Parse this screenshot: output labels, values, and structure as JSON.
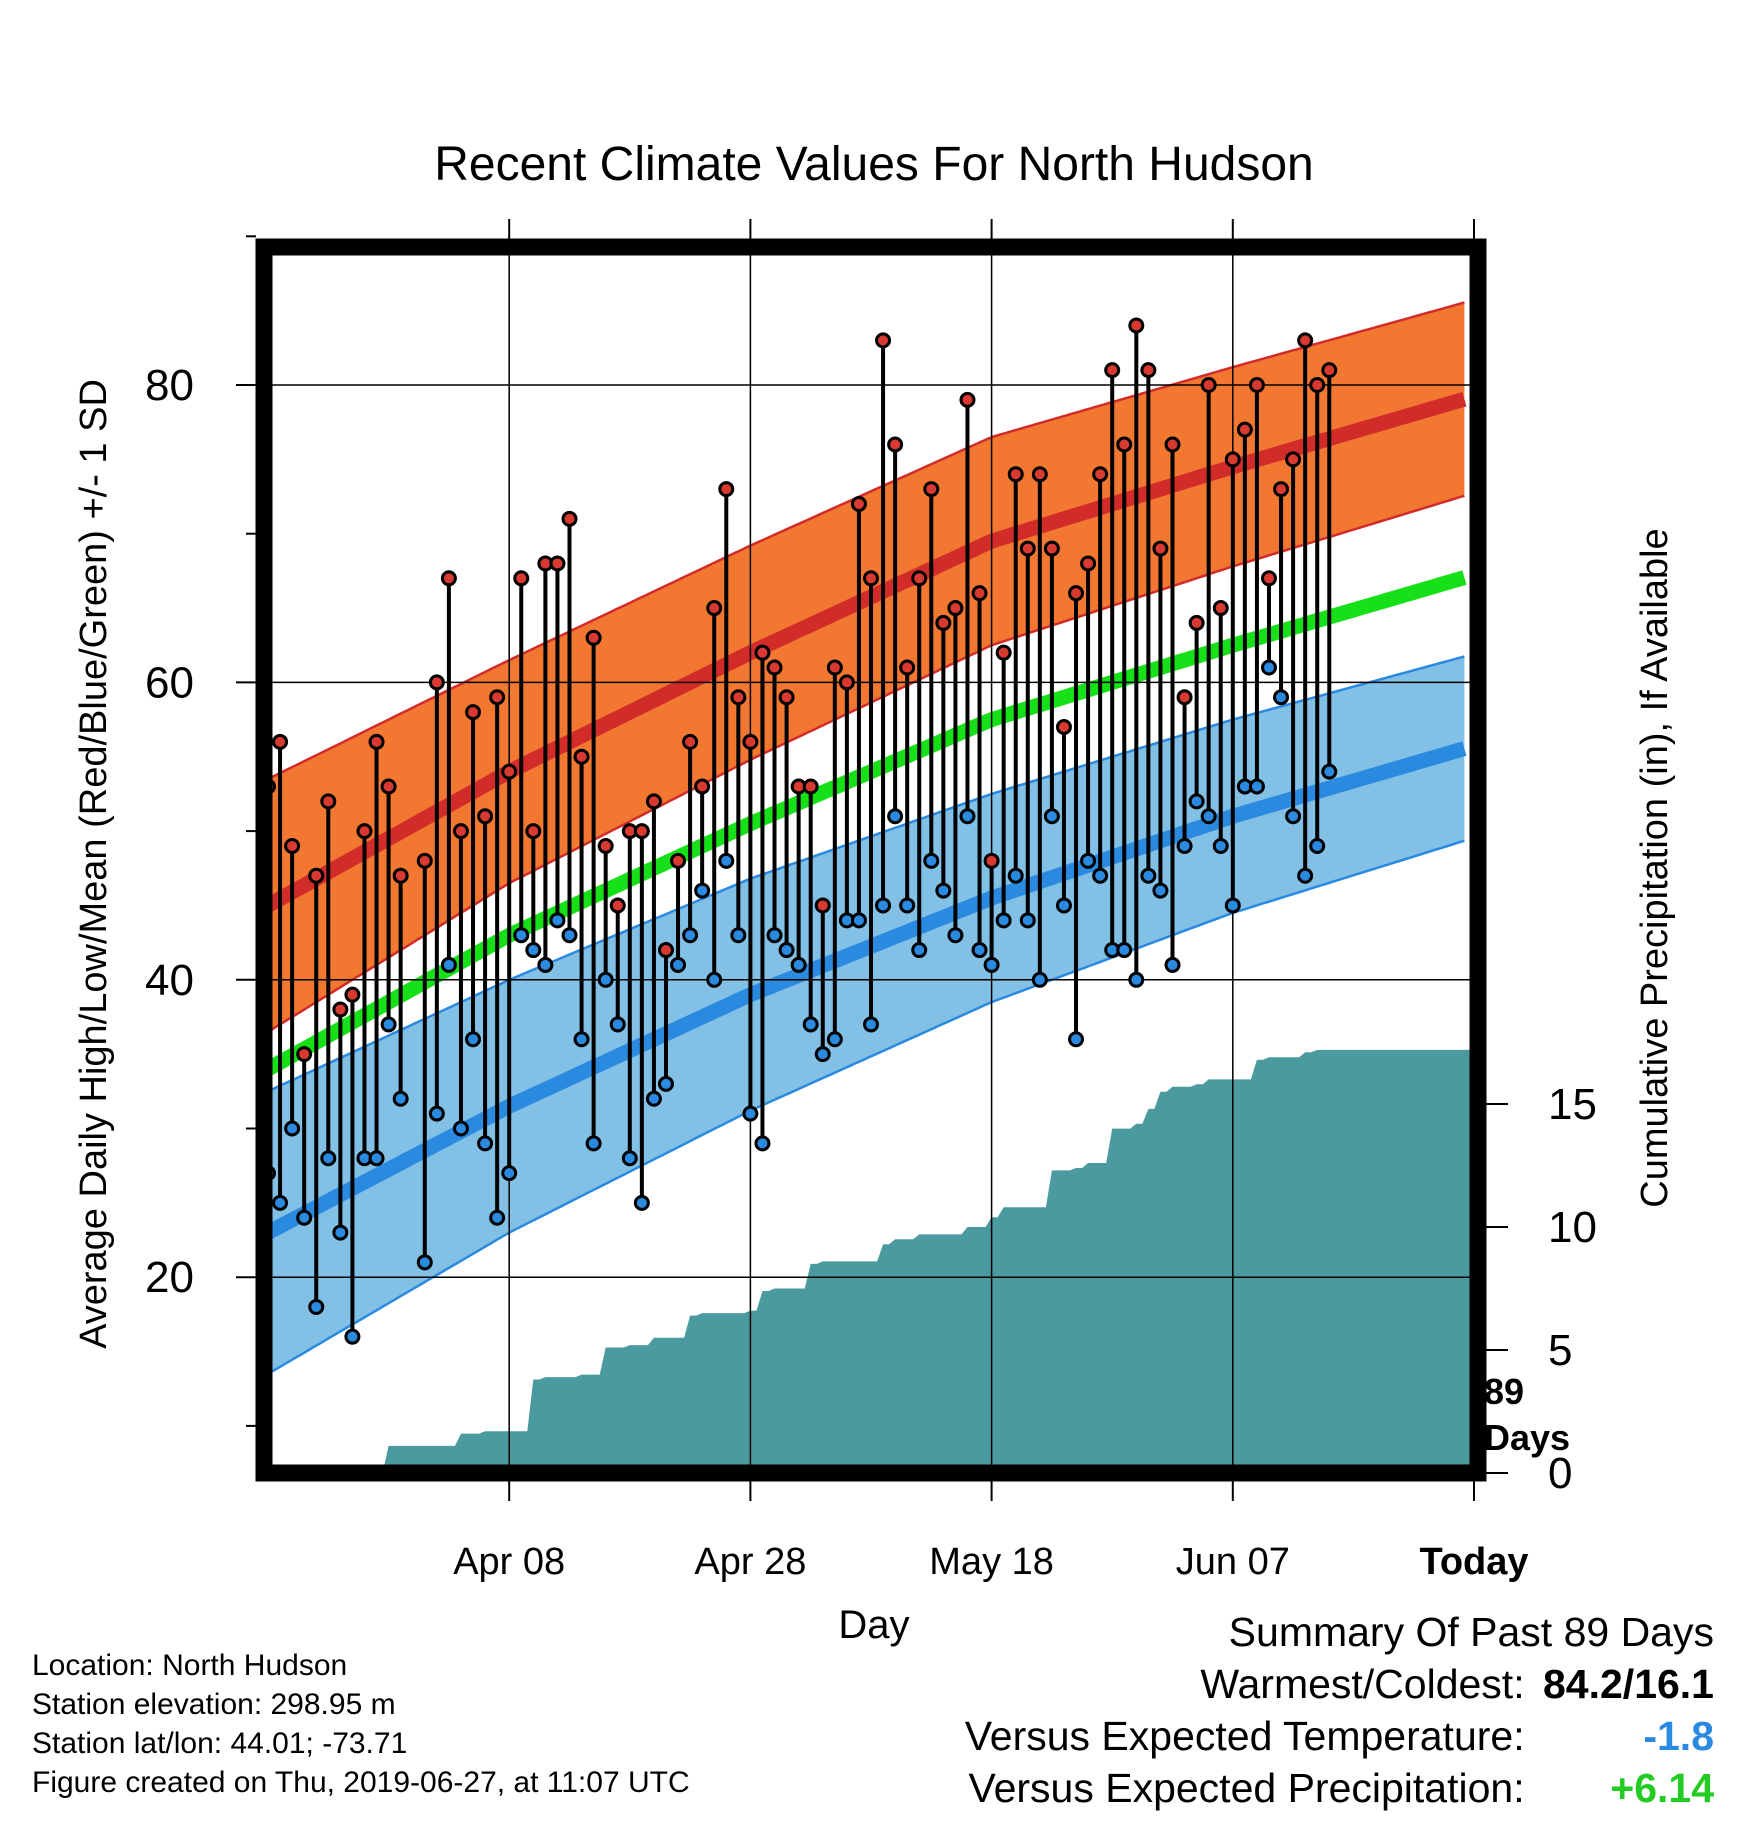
{
  "chart_data": {
    "type": "line",
    "title": "Recent Climate Values For North Hudson",
    "xlabel": "Day",
    "ylabel": "Average Daily High/Low/Mean (Red/Blue/Green) +/- 1 SD",
    "y2label": "Cumulative Precipitation (in), If Available",
    "x_ticks": [
      "Apr 08",
      "Apr 28",
      "May 18",
      "Jun 07",
      "Today"
    ],
    "y_ticks": [
      20,
      40,
      60,
      80
    ],
    "y2_ticks": [
      0,
      5,
      10,
      15
    ],
    "ylim": [
      6,
      92
    ],
    "y2lim": [
      0,
      20
    ],
    "grid": true,
    "today_marker": [
      "89",
      "Days"
    ],
    "normal_days": [
      0,
      20,
      40,
      60,
      80,
      99
    ],
    "normal_high": [
      45,
      54,
      62,
      69.5,
      74.5,
      79
    ],
    "normal_high_sd": [
      8.5,
      7.5,
      7.2,
      7,
      6.7,
      6.5
    ],
    "normal_low": [
      23,
      31.5,
      39,
      45.5,
      51,
      55.5
    ],
    "normal_low_sd": [
      9.5,
      8.5,
      7.8,
      7,
      6.5,
      6.2
    ],
    "normal_mean": [
      34,
      43,
      50.5,
      57.5,
      62.5,
      67
    ],
    "days": [
      0,
      1,
      2,
      3,
      4,
      5,
      6,
      7,
      8,
      9,
      10,
      11,
      12,
      13,
      14,
      15,
      16,
      17,
      18,
      19,
      20,
      21,
      22,
      23,
      24,
      25,
      26,
      27,
      28,
      29,
      30,
      31,
      32,
      33,
      34,
      35,
      36,
      37,
      38,
      39,
      40,
      41,
      42,
      43,
      44,
      45,
      46,
      47,
      48,
      49,
      50,
      51,
      52,
      53,
      54,
      55,
      56,
      57,
      58,
      59,
      60,
      61,
      62,
      63,
      64,
      65,
      66,
      67,
      68,
      69,
      70,
      71,
      72,
      73,
      74,
      75,
      76,
      77,
      78,
      79,
      80,
      81,
      82,
      83,
      84,
      85,
      86,
      87,
      88
    ],
    "highs": [
      53,
      56,
      49,
      35,
      47,
      52,
      38,
      39,
      50,
      56,
      53,
      47,
      null,
      48,
      60,
      67,
      50,
      58,
      51,
      59,
      54,
      67,
      50,
      68,
      68,
      71,
      55,
      63,
      49,
      45,
      50,
      50,
      52,
      42,
      48,
      56,
      53,
      65,
      73,
      59,
      56,
      62,
      61,
      59,
      53,
      53,
      45,
      61,
      60,
      72,
      67,
      83,
      76,
      61,
      67,
      73,
      64,
      65,
      79,
      66,
      48,
      62,
      74,
      69,
      74,
      69,
      57,
      66,
      68,
      74,
      81,
      76,
      84,
      81,
      69,
      76,
      59,
      64,
      80,
      65,
      75,
      77,
      80,
      67,
      73,
      75,
      83,
      80,
      81
    ],
    "lows": [
      27,
      25,
      30,
      24,
      18,
      28,
      23,
      16,
      28,
      28,
      37,
      32,
      null,
      21,
      31,
      41,
      30,
      36,
      29,
      24,
      27,
      43,
      42,
      41,
      44,
      43,
      36,
      29,
      40,
      37,
      28,
      25,
      32,
      33,
      41,
      43,
      46,
      40,
      48,
      43,
      31,
      29,
      43,
      42,
      41,
      37,
      35,
      36,
      44,
      44,
      37,
      45,
      51,
      45,
      42,
      48,
      46,
      43,
      51,
      42,
      41,
      44,
      47,
      44,
      40,
      51,
      45,
      36,
      48,
      47,
      42,
      42,
      40,
      47,
      46,
      41,
      49,
      52,
      51,
      49,
      45,
      53,
      53,
      61,
      59,
      51,
      47,
      49,
      54
    ],
    "precip_x": [
      9,
      10,
      15,
      16,
      18,
      20,
      22,
      23,
      26,
      28,
      30,
      32,
      35,
      36,
      40,
      41,
      42,
      45,
      46,
      51,
      52,
      54,
      56,
      58,
      60,
      61,
      65,
      67,
      68,
      70,
      71,
      72,
      73,
      74,
      75,
      77,
      78,
      80,
      82,
      83,
      84,
      85,
      86,
      87,
      88
    ],
    "precip_y": [
      0,
      1.1,
      1.1,
      1.6,
      1.7,
      1.7,
      3.8,
      3.9,
      4,
      5.1,
      5.2,
      5.5,
      6.4,
      6.5,
      6.6,
      7.4,
      7.5,
      8.5,
      8.6,
      9.3,
      9.5,
      9.7,
      9.7,
      10,
      10.4,
      10.8,
      12.3,
      12.4,
      12.6,
      14,
      14,
      14.2,
      14.8,
      15.5,
      15.7,
      15.8,
      16,
      16,
      16.8,
      16.9,
      16.9,
      16.9,
      17.1,
      17.2,
      17.2
    ],
    "colors": {
      "high_band": "#f27832",
      "high_line": "#d22c2a",
      "low_band": "#82c0e6",
      "low_line": "#2a8ae0",
      "mean_line": "#18e018",
      "precip_fill": "#4a9aa0",
      "high_dot": "#d83a32",
      "low_dot": "#2a8ae0"
    }
  },
  "footer": {
    "location": "Location: North Hudson",
    "elevation": "Station elevation: 298.95 m",
    "latlon": "Station lat/lon: 44.01; -73.71",
    "created": "Figure created on Thu, 2019-06-27, at 11:07 UTC"
  },
  "summary": {
    "title": "Summary Of Past 89 Days",
    "warm_cold_label": "Warmest/Coldest:",
    "warm_cold_value": "84.2/16.1",
    "temp_label": "Versus Expected Temperature:",
    "temp_value": "-1.8",
    "precip_label": "Versus Expected Precipitation:",
    "precip_value": "+6.14"
  }
}
